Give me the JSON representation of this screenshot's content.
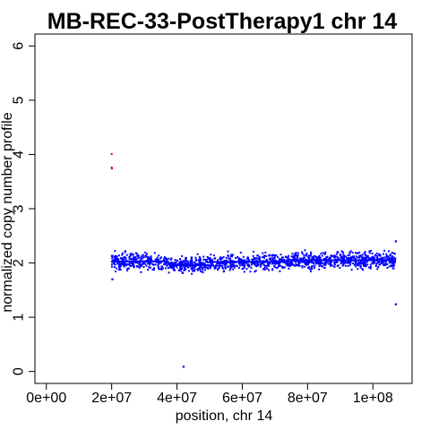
{
  "chart_data": {
    "type": "scatter",
    "title": "MB-REC-33-PostTherapy1 chr 14",
    "xlabel": "position, chr 14",
    "ylabel": "normalized copy number profile",
    "xlim": [
      -3500000,
      112000000
    ],
    "ylim": [
      -0.22,
      6.22
    ],
    "x_ticks": [
      0,
      20000000,
      40000000,
      60000000,
      80000000,
      100000000
    ],
    "x_tick_labels": [
      "0e+00",
      "2e+07",
      "4e+07",
      "6e+07",
      "8e+07",
      "1e+08"
    ],
    "y_ticks": [
      0,
      1,
      2,
      3,
      4,
      5,
      6
    ],
    "y_tick_labels": [
      "0",
      "1",
      "2",
      "3",
      "4",
      "5",
      "6"
    ],
    "grid": false,
    "colors": {
      "points": "#0000ff",
      "segment": "#0000ff",
      "outlier": "#cc0000"
    },
    "noise_amplitude": 0.22,
    "baseline_range": [
      20000000,
      107000000
    ],
    "segments": [
      {
        "x0": 20000000,
        "x1": 37500000,
        "y": 2.03
      },
      {
        "x0": 37500000,
        "x1": 50000000,
        "y": 1.96
      },
      {
        "x0": 50000000,
        "x1": 75000000,
        "y": 2.02
      },
      {
        "x0": 75000000,
        "x1": 107000000,
        "y": 2.05
      }
    ],
    "highlighted_points": [
      {
        "x": 20000000,
        "y": 3.76
      },
      {
        "x": 20100000,
        "y": 3.74
      },
      {
        "x": 20000000,
        "y": 4.01
      }
    ],
    "outlier_points": [
      {
        "x": 42000000,
        "y": 0.09
      },
      {
        "x": 107000000,
        "y": 1.24
      },
      {
        "x": 107000000,
        "y": 2.4
      },
      {
        "x": 20200000,
        "y": 1.7
      }
    ]
  }
}
